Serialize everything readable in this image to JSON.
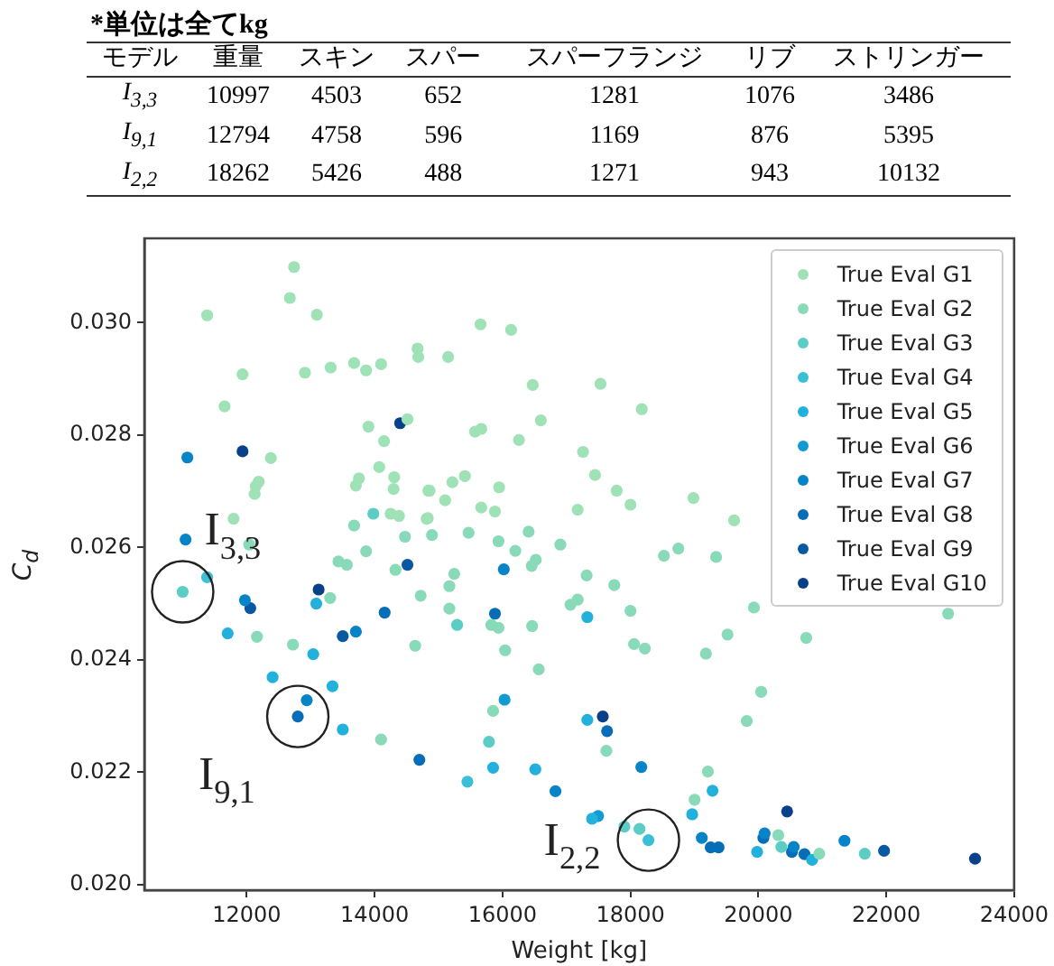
{
  "chart_data": [
    {
      "type": "other",
      "title": "*単位は全てkg",
      "annotations": [
        "モデル\t重量\tスキン\tスパー\tスパーフランジ\tリブ\tストリンガー",
        "I$_{3,3}$\t10997\t4503\t652\t1281\t1076\t3486",
        "I$_{9,1}$\t12794\t4758\t596\t1169\t876\t5395",
        "I$_{2,2}$\t18262\t5426\t488\t1271\t943\t10132"
      ]
    },
    {
      "type": "scatter",
      "xlabel": "Weight [kg]",
      "ylabel": "C$_{d}$",
      "legend": "top right",
      "marker": "circle",
      "xlim": [
        10400,
        24000
      ],
      "xticks": [
        12000,
        14000,
        16000,
        18000,
        20000,
        22000,
        24000
      ],
      "ylim": [
        0.0199,
        0.0315
      ],
      "yticks": [
        {
          "value": 0.02,
          "label": "0.020"
        },
        {
          "value": 0.022,
          "label": "0.022"
        },
        {
          "value": 0.024,
          "label": "0.024"
        },
        {
          "value": 0.026,
          "label": "0.026"
        },
        {
          "value": 0.028,
          "label": "0.028"
        },
        {
          "value": 0.03,
          "label": "0.030"
        }
      ],
      "annotations": [
        {
          "text": "I$_{3,3}$",
          "x": 10999,
          "y": 0.02521
        },
        {
          "text": "I$_{9,1}$",
          "x": 12799,
          "y": 0.02299
        },
        {
          "text": "I$_{2,2}$",
          "x": 18282,
          "y": 0.02079
        }
      ],
      "series": [
        {
          "name": "True Eval G1",
          "color": "#9ee2b6",
          "x": [
            12740,
            12675,
            11381,
            13097,
            11935,
            11654,
            12911,
            13313,
            13679,
            13867,
            14101,
            14672,
            14683,
            14514,
            13904,
            14148,
            12377,
            12188,
            12141,
            12124,
            13755,
            13707,
            14073,
            14306,
            14297,
            14841,
            11795,
            15656,
            16134,
            15150,
            16472,
            17532,
            18178,
            15571,
            15668,
            16599,
            16257,
            17259,
            17447,
            17785,
            18001,
            18985,
            19621,
            15412,
            15216,
            15947,
            15103,
            14859,
            15668,
            15882,
            17175,
            14832,
            14250,
            14381,
            14813
          ],
          "values": [
            0.03099,
            0.03044,
            0.03013,
            0.03014,
            0.02908,
            0.02851,
            0.02911,
            0.0292,
            0.02928,
            0.02915,
            0.02926,
            0.02954,
            0.02939,
            0.02828,
            0.02815,
            0.02789,
            0.02759,
            0.02717,
            0.02709,
            0.02695,
            0.02723,
            0.0271,
            0.02743,
            0.02725,
            0.02704,
            0.02701,
            0.02651,
            0.02997,
            0.02987,
            0.02939,
            0.02889,
            0.02891,
            0.02846,
            0.02806,
            0.02811,
            0.02826,
            0.02791,
            0.0277,
            0.02729,
            0.02701,
            0.02676,
            0.02688,
            0.02648,
            0.02727,
            0.02716,
            0.02707,
            0.02684,
            0.02701,
            0.02671,
            0.02664,
            0.02667,
            0.02652,
            0.0266,
            0.02656,
            0.02651
          ]
        },
        {
          "name": "True Eval G2",
          "color": "#88dab8",
          "x": [
            12039,
            13679,
            14475,
            13867,
            15469,
            16408,
            14897,
            15937,
            16201,
            16904,
            16520,
            16456,
            18524,
            18749,
            19340,
            17315,
            12160,
            13305,
            13434,
            13566,
            14326,
            14720,
            12723,
            14101,
            14635,
            15169,
            15245,
            15169,
            15825,
            15937,
            16041,
            15853,
            16463,
            16567,
            17748,
            17062,
            17175,
            18001,
            18057,
            18226,
            19518,
            19180,
            20749,
            19931,
            22968,
            20044,
            19819,
            17624,
            19211,
            19003,
            20312,
            20953
          ],
          "values": [
            0.02605,
            0.02639,
            0.02619,
            0.02593,
            0.02626,
            0.02628,
            0.02622,
            0.02611,
            0.02594,
            0.02605,
            0.02578,
            0.02567,
            0.02585,
            0.02598,
            0.02583,
            0.0255,
            0.02441,
            0.0251,
            0.02575,
            0.02569,
            0.0256,
            0.02514,
            0.02427,
            0.02258,
            0.02425,
            0.02531,
            0.02553,
            0.02491,
            0.02462,
            0.02457,
            0.02417,
            0.02309,
            0.0246,
            0.02383,
            0.02533,
            0.02498,
            0.02507,
            0.02487,
            0.02428,
            0.0242,
            0.02445,
            0.02411,
            0.02439,
            0.02493,
            0.02482,
            0.02343,
            0.02291,
            0.02238,
            0.02201,
            0.02151,
            0.02088,
            0.02055
          ]
        },
        {
          "name": "True Eval G3",
          "color": "#5ccdc4",
          "x": [
            10999,
            13980,
            15290,
            15788,
            17906,
            18142,
            20360,
            21665
          ],
          "values": [
            0.02521,
            0.0266,
            0.02462,
            0.02254,
            0.02103,
            0.02099,
            0.02067,
            0.02055
          ]
        },
        {
          "name": "True Eval G4",
          "color": "#3ac0d6",
          "x": [
            11381,
            15451,
            18282
          ],
          "values": [
            0.02547,
            0.02183,
            0.02079
          ]
        },
        {
          "name": "True Eval G5",
          "color": "#22b0dc",
          "x": [
            11702,
            13088,
            13040,
            12405,
            13341,
            13502,
            15853,
            16513,
            17326,
            17326,
            19284,
            18966,
            17400,
            19981,
            20841
          ],
          "values": [
            0.02447,
            0.025,
            0.0241,
            0.02369,
            0.02353,
            0.02276,
            0.02208,
            0.02205,
            0.02476,
            0.02293,
            0.02167,
            0.02125,
            0.02117,
            0.02058,
            0.02044
          ]
        },
        {
          "name": "True Eval G6",
          "color": "#129bd2",
          "x": [
            17495,
            16032
          ],
          "values": [
            0.02122,
            0.02329
          ]
        },
        {
          "name": "True Eval G7",
          "color": "#0784c8",
          "x": [
            11072,
            11044,
            16020,
            11972,
            13707,
            12939,
            18170,
            16828,
            19116,
            20098,
            21347,
            20553
          ],
          "values": [
            0.0276,
            0.02614,
            0.02561,
            0.02506,
            0.0245,
            0.02328,
            0.02209,
            0.02166,
            0.02083,
            0.02091,
            0.02078,
            0.02067
          ]
        },
        {
          "name": "True Eval G8",
          "color": "#066db6",
          "x": [
            12799,
            14157,
            14700,
            15882,
            17635,
            19255,
            19379,
            20079,
            20525,
            20722
          ],
          "values": [
            0.02299,
            0.02484,
            0.02222,
            0.02482,
            0.02273,
            0.02066,
            0.02066,
            0.02083,
            0.02058,
            0.02054
          ]
        },
        {
          "name": "True Eval G9",
          "color": "#0858a2",
          "x": [
            14514,
            12056,
            13502,
            21966
          ],
          "values": [
            0.02569,
            0.02492,
            0.02442,
            0.0206
          ]
        },
        {
          "name": "True Eval G10",
          "color": "#08408a",
          "x": [
            11935,
            14399,
            13125,
            17568,
            20450,
            23389
          ],
          "values": [
            0.02771,
            0.02821,
            0.02525,
            0.02299,
            0.0213,
            0.02046
          ]
        }
      ]
    }
  ]
}
